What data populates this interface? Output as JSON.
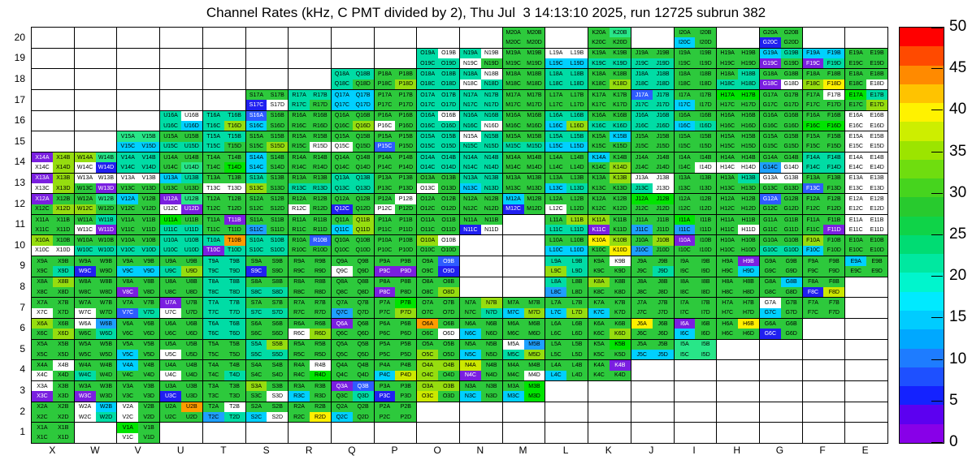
{
  "chart_data": {
    "type": "heatmap",
    "title": "Channel Rates (kHz, C PMT divided by 2), Thu Jul  3 14:13:10 2025, run 12725 subrun 382",
    "xlabel": "",
    "ylabel": "",
    "x_ticks": [
      "X",
      "W",
      "V",
      "U",
      "T",
      "S",
      "R",
      "Q",
      "P",
      "O",
      "N",
      "M",
      "L",
      "K",
      "J",
      "I",
      "H",
      "G",
      "F",
      "E"
    ],
    "y_ticks": [
      "20",
      "19",
      "18",
      "17",
      "16",
      "15",
      "14",
      "13",
      "12",
      "11",
      "10",
      "9",
      "8",
      "7",
      "6",
      "5",
      "4",
      "3",
      "2",
      "1"
    ],
    "cell_suffixes": [
      "A",
      "B",
      "C",
      "D"
    ],
    "legend_position": "right",
    "colorbar": {
      "min": 0,
      "max": 50,
      "tick_values": [
        50,
        45,
        40,
        35,
        30,
        25,
        20,
        15,
        10,
        5,
        0
      ],
      "segments_top_to_bottom": [
        "#ff0000",
        "#ff4a00",
        "#ff8a00",
        "#ffc300",
        "#fff200",
        "#cdee00",
        "#9ce400",
        "#6fdd0f",
        "#46d41e",
        "#28ca2e",
        "#0fd348",
        "#00dc73",
        "#00e8a0",
        "#00f5cd",
        "#00eaff",
        "#00ccff",
        "#00a8ff",
        "#1e7cff",
        "#1e50ff",
        "#1422ff",
        "#5c00f0",
        "#8800e8"
      ]
    },
    "palette": {
      "p": "#7a1fe0",
      "b": "#2020f0",
      "B": "#2e5cff",
      "d": "#1ea0ff",
      "c": "#00d0ff",
      "t": "#00dca5",
      "s": "#28e688",
      "g": "#2dc93c",
      "G": "#00e400",
      "l": "#96dd0f",
      "Y": "#cce800",
      "y": "#ffef00",
      "o": "#ff9c00",
      "w": "#ffffff"
    },
    "palette_values_khz": {
      "w": 0,
      "p": 2,
      "b": 6,
      "B": 9,
      "d": 12,
      "c": 16,
      "t": 21,
      "s": 24,
      "g": 27,
      "G": 30,
      "l": 33,
      "Y": 36,
      "y": 40,
      "o": 44
    },
    "dark_keys": "pbB",
    "blocks": {
      "M20": "gggg",
      "K20": "gsgg",
      "I20": "ggcg",
      "G20": "ggbg",
      "O19": "twtt",
      "N19": "twwg",
      "M19": "gggg",
      "L19": "wwcc",
      "K19": "ggtt",
      "J19": "ggtt",
      "I19": "gggg",
      "H19": "gggg",
      "G19": "ctpg",
      "F19": "ccpt",
      "E19": "gggg",
      "Q18": "tttg",
      "P18": "gggl",
      "O18": "tttt",
      "N18": "twwt",
      "M18": "gggg",
      "L18": "tttt",
      "K18": "gggl",
      "J18": "tttt",
      "I18": "gggg",
      "H18": "gttt",
      "G18": "ggpw",
      "F18": "ggly",
      "E18": "gggw",
      "S17": "ggbw",
      "R17": "tttg",
      "Q17": "cccc",
      "P17": "gggg",
      "O17": "tttt",
      "N17": "tttt",
      "M17": "gggg",
      "L17": "gggg",
      "K17": "gggg",
      "J17": "Bttt",
      "I17": "ggcg",
      "H17": "GGgg",
      "G17": "gggg",
      "F17": "gwgg",
      "E17": "Gtgl",
      "U16": "twtc",
      "T16": "tttl",
      "S16": "Bgcg",
      "R16": "gggg",
      "Q16": "gggl",
      "P16": "ggwg",
      "O16": "twtt",
      "N16": "tttw",
      "M16": "gggg",
      "L16": "ttcl",
      "K16": "ggtt",
      "J16": "tttt",
      "I16": "ggct",
      "H16": "gggg",
      "G16": "gggg",
      "F16": "ggGG",
      "E16": "wwww",
      "V15": "sscc",
      "U15": "ggtt",
      "T15": "tttg",
      "S15": "gggl",
      "R15": "gggw",
      "Q15": "ggwg",
      "P15": "ggBg",
      "O15": "tttt",
      "N15": "wttt",
      "M15": "ggtt",
      "L15": "ttcc",
      "K15": "gcgg",
      "J15": "gggg",
      "I15": "gggg",
      "H15": "gggg",
      "G15": "gggg",
      "F15": "gggg",
      "E15": "wwww",
      "X14": "plwl",
      "W14": "lswb",
      "V14": "tttt",
      "U14": "gggs",
      "T14": "gggG",
      "S14": "cgcg",
      "R14": "gggg",
      "Q14": "gggg",
      "P14": "gggg",
      "O14": "tttt",
      "N14": "tttt",
      "M14": "gggg",
      "L14": "gggg",
      "K14": "cggl",
      "J14": "gggg",
      "I14": "gggw",
      "H14": "ggww",
      "G14": "ggdw",
      "F14": "tttt",
      "E14": "wwww",
      "X13": "plwl",
      "W13": "wwgp",
      "V13": "wwgg",
      "U13": "ctgg",
      "T13": "ggww",
      "S13": "tglg",
      "R13": "ggtt",
      "Q13": "tttt",
      "P13": "gggg",
      "O13": "ggwg",
      "N13": "ttct",
      "M13": "gggg",
      "L13": "ggct",
      "K13": "glgg",
      "J13": "wwtw",
      "I13": "gggg",
      "H13": "gtgg",
      "G13": "wwgg",
      "F13": "ggBg",
      "E13": "wwww",
      "X12": "pggl",
      "W12": "gslg",
      "V12": "cggg",
      "U12": "pswp",
      "T12": "gggg",
      "S12": "gggg",
      "R12": "ggwg",
      "Q12": "ggbg",
      "P12": "gwwg",
      "O12": "gggg",
      "N12": "gggg",
      "M12": "cgbg",
      "L12": "ggwg",
      "K12": "gggg",
      "J12": "GGgg",
      "I12": "gggg",
      "H12": "gggg",
      "G12": "Bggg",
      "F12": "gggg",
      "E12": "wwww",
      "X11": "gggg",
      "W11": "gtwp",
      "V11": "gggg",
      "U11": "Ggtt",
      "T11": "gpgg",
      "S11": "ggdg",
      "R11": "gggg",
      "Q11": "glcl",
      "P11": "gggg",
      "O11": "gggg",
      "N11": "ggbw",
      "L11": "gltt",
      "K11": "lgpg",
      "J11": "ggdg",
      "I11": "Ggdg",
      "H11": "gggw",
      "G11": "gggg",
      "F11": "gggp",
      "E11": "wwww",
      "X10": "lgww",
      "W10": "ggtt",
      "V10": "ggtt",
      "U10": "tttt",
      "T10": "topt",
      "S10": "tttt",
      "R10": "gBgg",
      "Q10": "gggg",
      "P10": "gggg",
      "O10": "lwgg",
      "L10": "ggcc",
      "K10": "ylgy",
      "J10": "gldg",
      "I10": "pggg",
      "H10": "gggg",
      "G10": "ggtt",
      "F10": "lgcg",
      "E10": "gggg",
      "X9": "gggt",
      "W9": "ggbg",
      "V9": "ggcc",
      "U9": "ggtl",
      "T9": "tttt",
      "S9": "ggbg",
      "R9": "gggg",
      "Q9": "ggwg",
      "P9": "ggpp",
      "O9": "gBgb",
      "L9": "ttlt",
      "K9": "gwgg",
      "J9": "gggt",
      "I9": "gggg",
      "H9": "gpgc",
      "G9": "gggg",
      "F9": "gggg",
      "E9": "cggg",
      "X8": "glgg",
      "W8": "gggg",
      "V8": "ggpg",
      "U8": "gggg",
      "T8": "tttt",
      "S8": "ggtt",
      "R8": "gggg",
      "Q8": "gggg",
      "P8": "ggpg",
      "O8": "gggl",
      "L8": "tgdg",
      "K8": "lggg",
      "J8": "gggg",
      "I8": "gggg",
      "H8": "gggg",
      "G8": "gcgg",
      "F8": "ggbY",
      "X7": "ggwg",
      "W7": "ggwg",
      "V7": "ggBt",
      "U7": "pgwg",
      "T7": "tttt",
      "S7": "ggtt",
      "R7": "gggg",
      "Q7": "ggdg",
      "P7": "gGgl",
      "O7": "gggg",
      "N7": "glgt",
      "M7": "ggcl",
      "L7": "ggcl",
      "K7": "ggcg",
      "J7": "gggg",
      "I7": "gggg",
      "H7": "gggg",
      "G7": "wgcg",
      "F7": "gggg",
      "X6": "lggl",
      "W6": "wdgt",
      "V6": "gggg",
      "U6": "gggg",
      "T6": "tttt",
      "S6": "gggg",
      "R6": "ggwl",
      "Q6": "pggg",
      "P6": "gggg",
      "O6": "oggw",
      "N6": "ggcg",
      "M6": "gggg",
      "L6": "gggg",
      "K6": "gggl",
      "J6": "yggg",
      "I6": "pgcg",
      "H6": "gygg",
      "G6": "ggbg",
      "X5": "gggg",
      "W5": "gggg",
      "V5": "ggcg",
      "U5": "ggwg",
      "T5": "gggg",
      "S5": "tltt",
      "R5": "gggg",
      "Q5": "gggg",
      "P5": "gggg",
      "O5": "gglg",
      "N5": "ggcg",
      "M5": "wdtl",
      "L5": "gggg",
      "K5": "gGgg",
      "J5": "ggcc",
      "I5": "ssss",
      "X4": "gwwg",
      "W4": "ggtg",
      "V4": "cggg",
      "U4": "ggwg",
      "T4": "gggt",
      "S4": "gggg",
      "R4": "gwgG",
      "Q4": "gggg",
      "P4": "ggcY",
      "O4": "lllg",
      "N4": "Ygpg",
      "M4": "gggw",
      "L4": "ggcg",
      "K4": "gpgg",
      "X3": "wgpg",
      "W3": "ggpg",
      "V3": "gggg",
      "U3": "ggbg",
      "T3": "gggg",
      "S3": "lggw",
      "R3": "ggcg",
      "Q3": "pBgt",
      "P3": "ggbg",
      "O3": "llYg",
      "N3": "ggcg",
      "M3": "gGcG",
      "X2": "gggg",
      "W2": "wcwt",
      "V2": "wgwg",
      "U2": "gogg",
      "T2": "gwdt",
      "S2": "ggcw",
      "R2": "gggy",
      "Q2": "ggcg",
      "P2": "gggg",
      "X1": "gggg",
      "V1": "Ggwg"
    }
  }
}
